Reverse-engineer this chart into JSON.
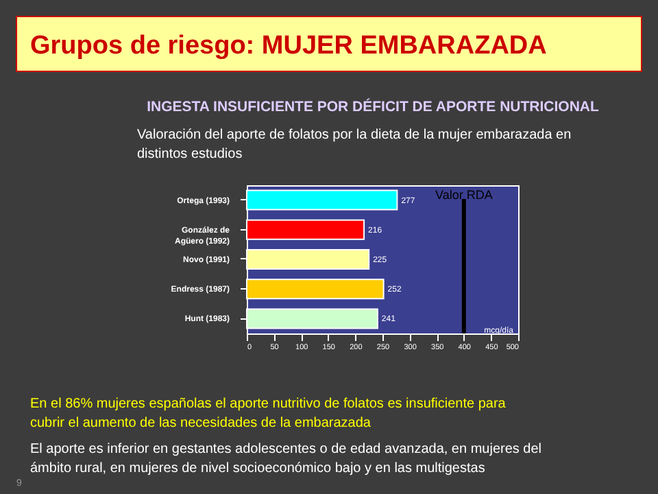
{
  "chart_data": {
    "type": "bar",
    "orientation": "horizontal",
    "title": "Grupos de riesgo: MUJER EMBARAZADA",
    "subtitle": "INGESTA INSUFICIENTE  POR DÉFICIT  DE APORTE NUTRICIONAL",
    "annotations": [
      "Valoración del aporte de folatos por la dieta de la mujer embarazada en distintos estudios",
      "En el 86% mujeres españolas el aporte nutritivo de folatos es insuficiente para cubrir el aumento de las necesidades de la embarazada",
      "El aporte es inferior en gestantes adolescentes o de edad avanzada, en mujeres del ámbito rural, en mujeres de nivel socioeconómico bajo y en las multigestas",
      "9"
    ],
    "categories": [
      "Ortega (1993)",
      "González de Agüero (1992)",
      "Novo (1991)",
      "Endress (1987)",
      "Hunt (1983)"
    ],
    "values": [
      277,
      216,
      225,
      252,
      241
    ],
    "colors": [
      "#00ffff",
      "#ff0000",
      "#ffff99",
      "#ffcc00",
      "#ccffcc"
    ],
    "data_labels": true,
    "xlabel": "mcg/día",
    "xlim": [
      0,
      500
    ],
    "xticks": [
      0,
      50,
      100,
      150,
      200,
      250,
      300,
      350,
      400,
      450,
      500
    ],
    "ref_lines": [
      {
        "axis": "x",
        "value": 400,
        "label": "Valor RDA",
        "color": "#000000"
      }
    ],
    "grid": false
  }
}
